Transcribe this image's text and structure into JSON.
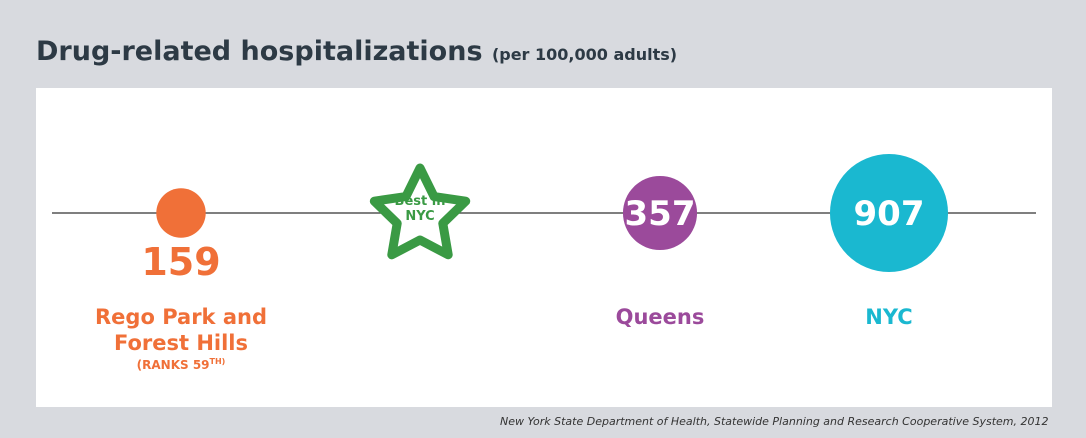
{
  "chart_data": {
    "type": "bubble",
    "title": "Drug-related hospitalizations",
    "subtitle": "(per 100,000 adults)",
    "categories": [
      "Rego Park and Forest Hills",
      "Queens",
      "NYC"
    ],
    "values": [
      159,
      357,
      907
    ],
    "colors": [
      "#f07038",
      "#9b4a9b",
      "#1ab8d0"
    ],
    "rank": "(RANKS 59",
    "rank_suffix": "TH)",
    "best_label": "Best in NYC",
    "source": "New York State Department of Health, Statewide Planning and Research Cooperative System, 2012"
  }
}
